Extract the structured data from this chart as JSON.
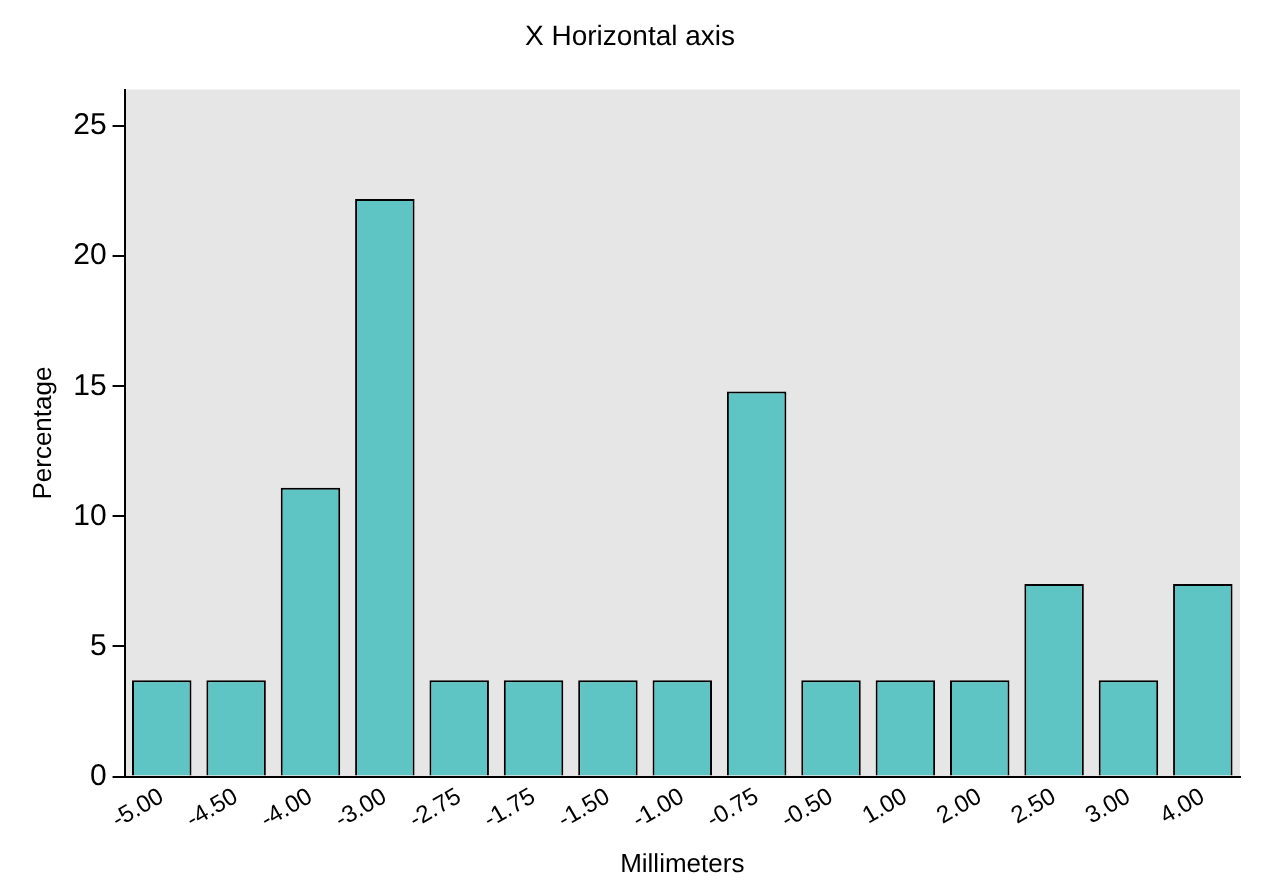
{
  "chart_data": {
    "type": "bar",
    "title": "X Horizontal axis",
    "xlabel": "Millimeters",
    "ylabel": "Percentage",
    "categories": [
      "-5.00",
      "-4.50",
      "-4.00",
      "-3.00",
      "-2.75",
      "-1.75",
      "-1.50",
      "-1.00",
      "-0.75",
      "-0.50",
      "1.00",
      "2.00",
      "2.50",
      "3.00",
      "4.00"
    ],
    "values": [
      3.7,
      3.7,
      11.1,
      22.2,
      3.7,
      3.7,
      3.7,
      3.7,
      14.8,
      3.7,
      3.7,
      3.7,
      7.4,
      3.7,
      7.4
    ],
    "color": "#5fc4c4",
    "ylim": [
      0,
      26.4
    ],
    "yticks": [
      0,
      5,
      10,
      15,
      20,
      25
    ],
    "grid": false,
    "legend": false
  }
}
